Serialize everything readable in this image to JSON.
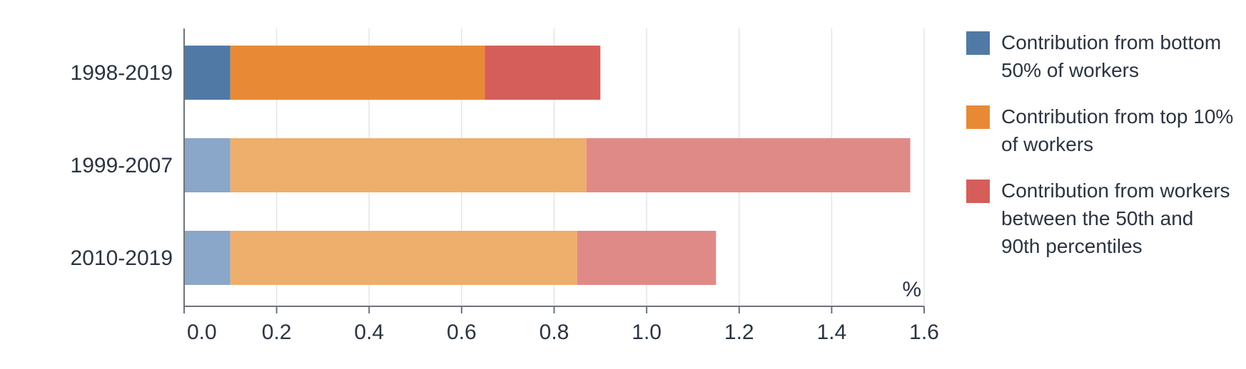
{
  "chart_data": {
    "type": "bar",
    "orientation": "horizontal",
    "stacked": true,
    "categories": [
      "1998-2019",
      "1999-2007",
      "2010-2019"
    ],
    "series": [
      {
        "name": "Contribution from bottom 50% of workers",
        "values": [
          0.1,
          0.1,
          0.1
        ],
        "colors": [
          "#5079a5",
          "#8aa6c8",
          "#8aa6c8"
        ]
      },
      {
        "name": "Contribution from top 10% of workers",
        "values": [
          0.55,
          0.77,
          0.75
        ],
        "colors": [
          "#e88a35",
          "#eeae6c",
          "#eeae6c"
        ]
      },
      {
        "name": "Contribution from workers between the 50th and 90th percentiles",
        "values": [
          0.25,
          0.7,
          0.3
        ],
        "colors": [
          "#d55e5a",
          "#e08a88",
          "#e08a88"
        ]
      }
    ],
    "legend_colors": [
      "#5079a5",
      "#e88a35",
      "#d55e5a"
    ],
    "unit_label": "%",
    "xlim": [
      0,
      1.6
    ],
    "xticks": [
      "0.0",
      "0.2",
      "0.4",
      "0.6",
      "0.8",
      "1.0",
      "1.2",
      "1.4",
      "1.6"
    ],
    "grid": true,
    "legend_position": "right"
  }
}
